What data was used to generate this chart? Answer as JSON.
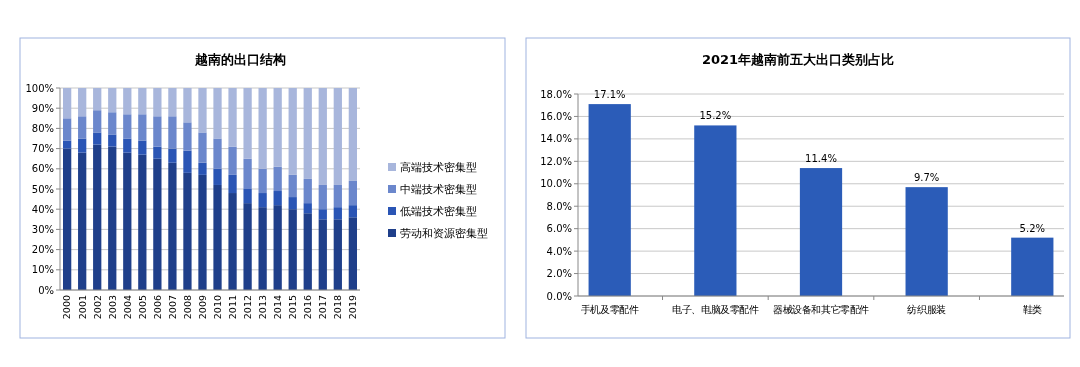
{
  "chart_data": [
    {
      "type": "bar",
      "title": "越南的出口结构",
      "stacked": true,
      "categories": [
        "2000",
        "2001",
        "2002",
        "2003",
        "2004",
        "2005",
        "2006",
        "2007",
        "2008",
        "2009",
        "2010",
        "2011",
        "2012",
        "2013",
        "2014",
        "2015",
        "2016",
        "2017",
        "2018",
        "2019"
      ],
      "series": [
        {
          "name": "劳动和资源密集型",
          "color": "#1f3f8a",
          "values": [
            70,
            68,
            72,
            71,
            68,
            67,
            65,
            63,
            58,
            57,
            52,
            48,
            43,
            41,
            42,
            40,
            38,
            35,
            35,
            36
          ]
        },
        {
          "name": "低端技术密集型",
          "color": "#2a55b5",
          "values": [
            4,
            7,
            6,
            6,
            7,
            7,
            6,
            7,
            11,
            6,
            8,
            9,
            7,
            7,
            7,
            6,
            5,
            5,
            6,
            6
          ]
        },
        {
          "name": "中端技术密集型",
          "color": "#6b87cc",
          "values": [
            11,
            11,
            11,
            11,
            12,
            13,
            15,
            16,
            14,
            15,
            15,
            14,
            15,
            12,
            12,
            11,
            12,
            12,
            11,
            12
          ]
        },
        {
          "name": "高端技术密集型",
          "color": "#a8b6dc",
          "values": [
            15,
            14,
            11,
            12,
            13,
            13,
            14,
            14,
            17,
            22,
            25,
            29,
            35,
            40,
            39,
            43,
            45,
            48,
            48,
            46
          ]
        }
      ],
      "ylim": [
        0,
        100
      ],
      "yticks": [
        {
          "value": 0,
          "label": "0%"
        },
        {
          "value": 10,
          "label": "10%"
        },
        {
          "value": 20,
          "label": "20%"
        },
        {
          "value": 30,
          "label": "30%"
        },
        {
          "value": 40,
          "label": "40%"
        },
        {
          "value": 50,
          "label": "50%"
        },
        {
          "value": 60,
          "label": "60%"
        },
        {
          "value": 70,
          "label": "70%"
        },
        {
          "value": 80,
          "label": "80%"
        },
        {
          "value": 90,
          "label": "90%"
        },
        {
          "value": 100,
          "label": "100%"
        }
      ],
      "grid": "y",
      "legend": "right"
    },
    {
      "type": "bar",
      "title": "2021年越南前五大出口类别占比",
      "categories": [
        "手机及零配件",
        "电子、电脑及零配件",
        "器械设备和其它零配件",
        "纺织服装",
        "鞋类"
      ],
      "values": [
        17.1,
        15.2,
        11.4,
        9.7,
        5.2
      ],
      "color": "#2b5cb8",
      "value_labels": [
        "17.1%",
        "15.2%",
        "11.4%",
        "9.7%",
        "5.2%"
      ],
      "ylim": [
        0,
        18
      ],
      "yticks": [
        {
          "value": 0,
          "label": "0.0%"
        },
        {
          "value": 2,
          "label": "2.0%"
        },
        {
          "value": 4,
          "label": "4.0%"
        },
        {
          "value": 6,
          "label": "6.0%"
        },
        {
          "value": 8,
          "label": "8.0%"
        },
        {
          "value": 10,
          "label": "10.0%"
        },
        {
          "value": 12,
          "label": "12.0%"
        },
        {
          "value": 14,
          "label": "14.0%"
        },
        {
          "value": 16,
          "label": "16.0%"
        },
        {
          "value": 18,
          "label": "18.0%"
        }
      ],
      "grid": "y"
    }
  ]
}
